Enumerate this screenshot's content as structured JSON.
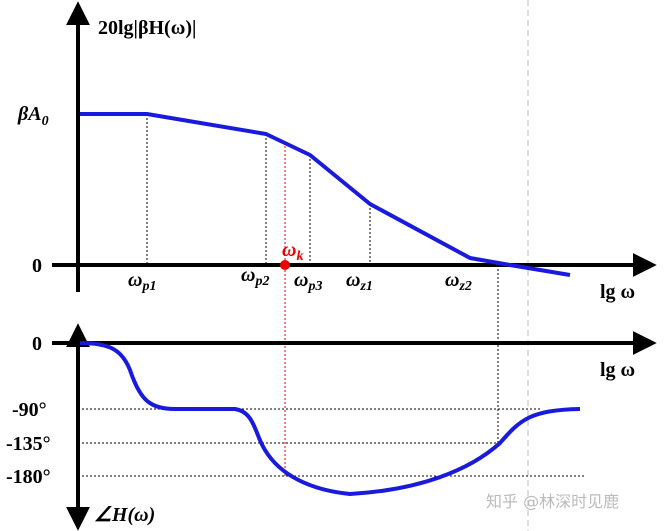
{
  "magnitude": {
    "y_label": "20lg|βH(ω)|",
    "level_label": {
      "base": "βA",
      "sub": "0"
    },
    "zero_label": "0",
    "x_label": "lg ω",
    "frequencies": [
      {
        "base": "ω",
        "sub": "p1"
      },
      {
        "base": "ω",
        "sub": "p2"
      },
      {
        "base": "ω",
        "sub": "k"
      },
      {
        "base": "ω",
        "sub": "p3"
      },
      {
        "base": "ω",
        "sub": "z1"
      },
      {
        "base": "ω",
        "sub": "z2"
      }
    ]
  },
  "phase": {
    "zero_label": "0",
    "x_label": "lg ω",
    "levels": [
      "-90°",
      "-135°",
      "-180°"
    ],
    "y_label": "∠H(ω)"
  },
  "watermark": "知乎 @林深时见鹿"
}
